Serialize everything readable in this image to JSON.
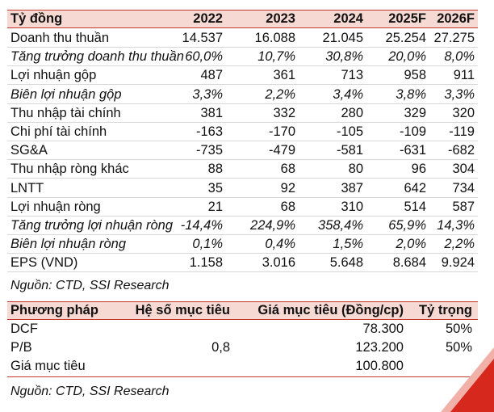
{
  "financials": {
    "header": {
      "unit": "Tỷ đồng",
      "years": [
        "2022",
        "2023",
        "2024",
        "2025F",
        "2026F"
      ]
    },
    "rows": [
      {
        "label": "Doanh thu thuần",
        "values": [
          "14.537",
          "16.088",
          "21.045",
          "25.254",
          "27.275"
        ],
        "italic": false
      },
      {
        "label": "Tăng trưởng doanh thu thuần",
        "values": [
          "60,0%",
          "10,7%",
          "30,8%",
          "20,0%",
          "8,0%"
        ],
        "italic": true
      },
      {
        "label": "Lợi nhuận gộp",
        "values": [
          "487",
          "361",
          "713",
          "958",
          "911"
        ],
        "italic": false
      },
      {
        "label": "Biên lợi nhuận gộp",
        "values": [
          "3,3%",
          "2,2%",
          "3,4%",
          "3,8%",
          "3,3%"
        ],
        "italic": true
      },
      {
        "label": "Thu nhập tài chính",
        "values": [
          "381",
          "332",
          "280",
          "329",
          "320"
        ],
        "italic": false
      },
      {
        "label": "Chi phí tài chính",
        "values": [
          "-163",
          "-170",
          "-105",
          "-109",
          "-119"
        ],
        "italic": false
      },
      {
        "label": "SG&A",
        "values": [
          "-735",
          "-479",
          "-581",
          "-631",
          "-682"
        ],
        "italic": false
      },
      {
        "label": "Thu nhập ròng khác",
        "values": [
          "88",
          "68",
          "80",
          "96",
          "304"
        ],
        "italic": false
      },
      {
        "label": "LNTT",
        "values": [
          "35",
          "92",
          "387",
          "642",
          "734"
        ],
        "italic": false
      },
      {
        "label": "Lợi nhuận ròng",
        "values": [
          "21",
          "68",
          "310",
          "514",
          "587"
        ],
        "italic": false
      },
      {
        "label": "Tăng trưởng lợi nhuận ròng",
        "values": [
          "-14,4%",
          "224,9%",
          "358,4%",
          "65,9%",
          "14,3%"
        ],
        "italic": true
      },
      {
        "label": "Biên lợi nhuận ròng",
        "values": [
          "0,1%",
          "0,4%",
          "1,5%",
          "2,0%",
          "2,2%"
        ],
        "italic": true
      },
      {
        "label": "EPS (VND)",
        "values": [
          "1.158",
          "3.016",
          "5.648",
          "8.684",
          "9.924"
        ],
        "italic": false
      }
    ],
    "source": "Nguồn: CTD, SSI Research"
  },
  "valuation": {
    "header": {
      "method": "Phương pháp",
      "target_multiple": "Hệ số mục tiêu",
      "target_price": "Giá mục tiêu (Đồng/cp)",
      "weight": "Tỷ trọng"
    },
    "rows": [
      {
        "method": "DCF",
        "target_multiple": "",
        "target_price": "78.300",
        "weight": "50%"
      },
      {
        "method": "P/B",
        "target_multiple": "0,8",
        "target_price": "123.200",
        "weight": "50%"
      },
      {
        "method": "Giá mục tiêu",
        "target_multiple": "",
        "target_price": "100.800",
        "weight": ""
      }
    ],
    "source": "Nguồn: CTD, SSI Research"
  },
  "colors": {
    "accent": "#c53a2e",
    "header_fill": "#f7d9d3",
    "corner": "#d7281e"
  }
}
